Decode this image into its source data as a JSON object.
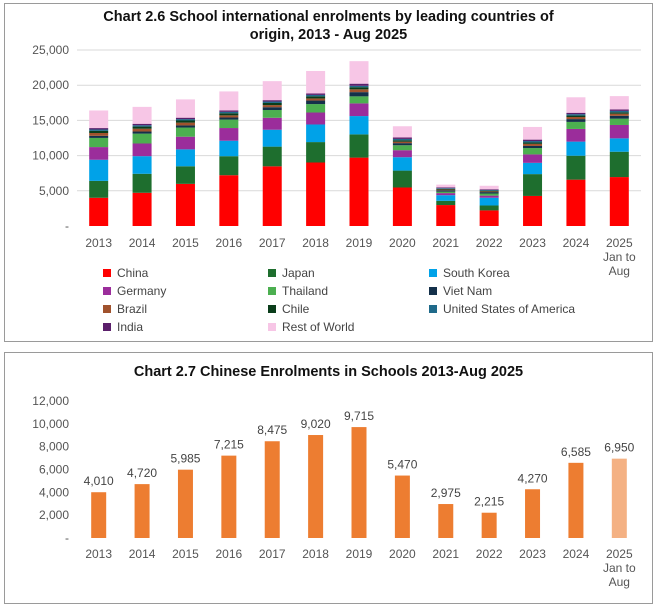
{
  "chart1": {
    "title_line1": "Chart 2.6  School international enrolments by leading countries of",
    "title_line2": "origin, 2013 - Aug 2025"
  },
  "chart2": {
    "title": "Chart 2.7  Chinese Enrolments in Schools 2013-Aug 2025"
  },
  "chart_data": [
    {
      "type": "bar",
      "stacked": true,
      "title": "Chart 2.6  School international enrolments by leading countries of origin, 2013 - Aug 2025",
      "categories": [
        "2013",
        "2014",
        "2015",
        "2016",
        "2017",
        "2018",
        "2019",
        "2020",
        "2021",
        "2022",
        "2023",
        "2024",
        "2025\nJan to\nAug"
      ],
      "ylim": [
        0,
        25000
      ],
      "yticks": [
        0,
        5000,
        10000,
        15000,
        20000,
        25000
      ],
      "ytick_labels": [
        "-",
        "5,000",
        "10,000",
        "15,000",
        "20,000",
        "25,000"
      ],
      "grid": true,
      "legend_position": "bottom",
      "series": [
        {
          "name": "China",
          "color": "#ff0000",
          "values": [
            4010,
            4720,
            5985,
            7215,
            8475,
            9020,
            9715,
            5470,
            2975,
            2215,
            4270,
            6585,
            6950
          ]
        },
        {
          "name": "Japan",
          "color": "#1e6e2e",
          "values": [
            2400,
            2700,
            2500,
            2700,
            2800,
            2900,
            3300,
            2400,
            600,
            700,
            3100,
            3400,
            3600
          ]
        },
        {
          "name": "South Korea",
          "color": "#00a2e8",
          "values": [
            3000,
            2500,
            2400,
            2200,
            2400,
            2500,
            2600,
            1900,
            800,
            1100,
            1600,
            2000,
            1900
          ]
        },
        {
          "name": "Germany",
          "color": "#9b2d9b",
          "values": [
            1800,
            1800,
            1800,
            1800,
            1700,
            1700,
            1800,
            1000,
            300,
            300,
            1200,
            1800,
            1900
          ]
        },
        {
          "name": "Thailand",
          "color": "#4caf50",
          "values": [
            1300,
            1400,
            1300,
            1200,
            1100,
            1200,
            1000,
            700,
            200,
            300,
            900,
            1000,
            900
          ]
        },
        {
          "name": "Viet Nam",
          "color": "#14304a",
          "values": [
            300,
            300,
            300,
            300,
            400,
            500,
            600,
            300,
            200,
            200,
            300,
            400,
            400
          ]
        },
        {
          "name": "Brazil",
          "color": "#a0522d",
          "values": [
            400,
            400,
            400,
            300,
            300,
            300,
            400,
            200,
            100,
            100,
            300,
            300,
            300
          ]
        },
        {
          "name": "Chile",
          "color": "#0a3d1a",
          "values": [
            300,
            300,
            300,
            300,
            300,
            300,
            300,
            200,
            100,
            100,
            200,
            200,
            200
          ]
        },
        {
          "name": "United States of America",
          "color": "#1f6a8a",
          "values": [
            200,
            200,
            200,
            200,
            200,
            200,
            200,
            200,
            100,
            100,
            200,
            200,
            200
          ]
        },
        {
          "name": "India",
          "color": "#5b1f6b",
          "values": [
            200,
            200,
            200,
            200,
            200,
            200,
            300,
            200,
            100,
            100,
            200,
            200,
            200
          ]
        },
        {
          "name": "Rest of World",
          "color": "#f7c6e6",
          "values": [
            2500,
            2400,
            2600,
            2700,
            2700,
            3200,
            3200,
            1600,
            400,
            500,
            1800,
            2200,
            1900
          ]
        }
      ]
    },
    {
      "type": "bar",
      "title": "Chart 2.7  Chinese Enrolments in Schools 2013-Aug 2025",
      "categories": [
        "2013",
        "2014",
        "2015",
        "2016",
        "2017",
        "2018",
        "2019",
        "2020",
        "2021",
        "2022",
        "2023",
        "2024",
        "2025\nJan to\nAug"
      ],
      "values": [
        4010,
        4720,
        5985,
        7215,
        8475,
        9020,
        9715,
        5470,
        2975,
        2215,
        4270,
        6585,
        6950
      ],
      "value_labels": [
        "4,010",
        "4,720",
        "5,985",
        "7,215",
        "8,475",
        "9,020",
        "9,715",
        "5,470",
        "2,975",
        "2,215",
        "4,270",
        "6,585",
        "6,950"
      ],
      "ylim": [
        0,
        12000
      ],
      "yticks": [
        0,
        2000,
        4000,
        6000,
        8000,
        10000,
        12000
      ],
      "ytick_labels": [
        "-",
        "2,000",
        "4,000",
        "6,000",
        "8,000",
        "10,000",
        "12,000"
      ],
      "grid": false,
      "bar_color": "#ed7d31",
      "highlight_color": "#f4b183",
      "highlight_index": 12
    }
  ]
}
